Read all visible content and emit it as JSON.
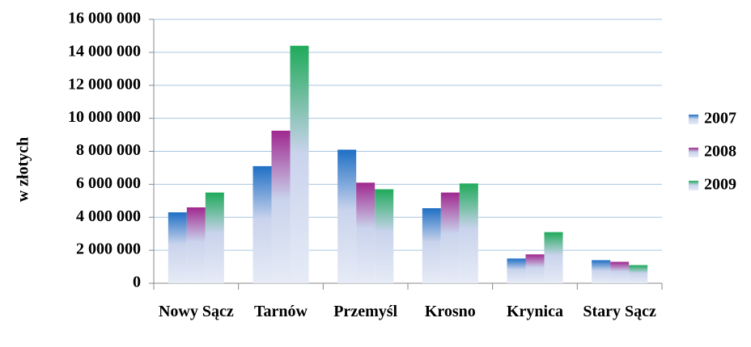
{
  "chart_data": {
    "type": "bar",
    "y_label": "w złotych",
    "categories": [
      "Nowy Sącz",
      "Tarnów",
      "Przemyśl",
      "Krosno",
      "Krynica",
      "Stary Sącz"
    ],
    "series": [
      {
        "name": "2007",
        "color": "#1f6fc5",
        "values": [
          4300000,
          7100000,
          8100000,
          4550000,
          1500000,
          1400000
        ]
      },
      {
        "name": "2008",
        "color": "#a0288f",
        "values": [
          4600000,
          9250000,
          6100000,
          5500000,
          1750000,
          1300000
        ]
      },
      {
        "name": "2009",
        "color": "#1faa5a",
        "values": [
          5500000,
          14400000,
          5700000,
          6050000,
          3100000,
          1100000
        ]
      }
    ],
    "ylim": [
      0,
      16000000
    ],
    "yticks": [
      0,
      {
        "value": 2000000,
        "label": "2 000 000"
      },
      {
        "value": 4000000,
        "label": "4 000 000"
      },
      {
        "value": 6000000,
        "label": "6 000 000"
      },
      {
        "value": 8000000,
        "label": "8 000 000"
      },
      {
        "value": 10000000,
        "label": "10 000 000"
      },
      {
        "value": 12000000,
        "label": "12 000 000"
      },
      {
        "value": 14000000,
        "label": "14 000 000"
      },
      {
        "value": 16000000,
        "label": "16 000 000"
      }
    ],
    "grid": true,
    "legend": "right"
  }
}
